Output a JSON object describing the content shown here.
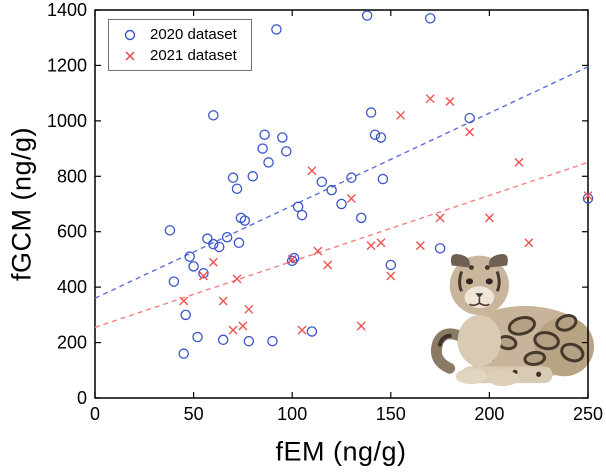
{
  "chart_data": {
    "type": "scatter",
    "title": "",
    "xlabel": "fEM (ng/g)",
    "ylabel": "fGCM (ng/g)",
    "xlim": [
      0,
      250
    ],
    "ylim": [
      0,
      1400
    ],
    "xticks": [
      0,
      50,
      100,
      150,
      200,
      250
    ],
    "yticks": [
      0,
      200,
      400,
      600,
      800,
      1000,
      1200,
      1400
    ],
    "grid": false,
    "legend_position": "top-left",
    "series": [
      {
        "name": "2020 dataset",
        "marker": "circle",
        "color": "#3a55c8",
        "points": [
          [
            38,
            605
          ],
          [
            40,
            420
          ],
          [
            45,
            160
          ],
          [
            46,
            300
          ],
          [
            48,
            510
          ],
          [
            50,
            475
          ],
          [
            52,
            220
          ],
          [
            55,
            450
          ],
          [
            57,
            575
          ],
          [
            60,
            1020
          ],
          [
            60,
            555
          ],
          [
            63,
            545
          ],
          [
            65,
            210
          ],
          [
            67,
            580
          ],
          [
            70,
            795
          ],
          [
            72,
            755
          ],
          [
            73,
            560
          ],
          [
            74,
            650
          ],
          [
            76,
            640
          ],
          [
            78,
            205
          ],
          [
            80,
            800
          ],
          [
            85,
            900
          ],
          [
            86,
            950
          ],
          [
            88,
            850
          ],
          [
            90,
            205
          ],
          [
            92,
            1330
          ],
          [
            95,
            940
          ],
          [
            97,
            890
          ],
          [
            100,
            495
          ],
          [
            101,
            505
          ],
          [
            103,
            690
          ],
          [
            105,
            660
          ],
          [
            110,
            240
          ],
          [
            115,
            780
          ],
          [
            120,
            750
          ],
          [
            125,
            700
          ],
          [
            130,
            795
          ],
          [
            135,
            650
          ],
          [
            138,
            1380
          ],
          [
            140,
            1030
          ],
          [
            142,
            950
          ],
          [
            145,
            940
          ],
          [
            146,
            790
          ],
          [
            150,
            480
          ],
          [
            170,
            1370
          ],
          [
            175,
            540
          ],
          [
            190,
            1010
          ],
          [
            250,
            720
          ]
        ]
      },
      {
        "name": "2021 dataset",
        "marker": "x",
        "color": "#ee5350",
        "points": [
          [
            45,
            350
          ],
          [
            55,
            440
          ],
          [
            60,
            490
          ],
          [
            65,
            350
          ],
          [
            70,
            245
          ],
          [
            72,
            430
          ],
          [
            75,
            260
          ],
          [
            78,
            320
          ],
          [
            100,
            500
          ],
          [
            105,
            245
          ],
          [
            110,
            820
          ],
          [
            113,
            530
          ],
          [
            118,
            480
          ],
          [
            130,
            720
          ],
          [
            135,
            260
          ],
          [
            140,
            550
          ],
          [
            145,
            560
          ],
          [
            150,
            440
          ],
          [
            155,
            1020
          ],
          [
            165,
            550
          ],
          [
            170,
            1080
          ],
          [
            175,
            650
          ],
          [
            180,
            1070
          ],
          [
            190,
            960
          ],
          [
            200,
            650
          ],
          [
            215,
            850
          ],
          [
            220,
            560
          ],
          [
            250,
            730
          ]
        ]
      }
    ],
    "trendlines": [
      {
        "series": "2020 dataset",
        "style": "dashed",
        "color": "#5b6fd8",
        "x": [
          0,
          250
        ],
        "y": [
          360,
          1195
        ]
      },
      {
        "series": "2021 dataset",
        "style": "dashed",
        "color": "#f2827f",
        "x": [
          0,
          250
        ],
        "y": [
          255,
          850
        ]
      }
    ],
    "annotation_image": "clouded-leopard"
  },
  "colors": {
    "axis": "#000000",
    "background": "#ffffff"
  }
}
